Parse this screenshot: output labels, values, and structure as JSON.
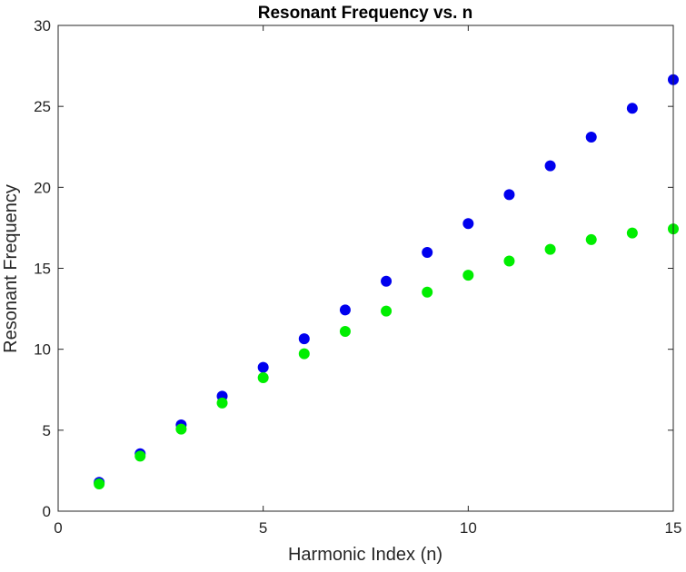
{
  "chart_data": {
    "type": "scatter",
    "title": "Resonant Frequency vs. n",
    "xlabel": "Harmonic Index (n)",
    "ylabel": "Resonant Frequency",
    "xlim": [
      0,
      15
    ],
    "ylim": [
      0,
      30
    ],
    "xticks": [
      0,
      5,
      10,
      15
    ],
    "yticks": [
      0,
      5,
      10,
      15,
      20,
      25,
      30
    ],
    "grid": false,
    "series": [
      {
        "color": "#0000ee",
        "x": [
          1,
          2,
          3,
          4,
          5,
          6,
          7,
          8,
          9,
          10,
          11,
          12,
          13,
          14,
          15
        ],
        "y": [
          1.78,
          3.55,
          5.33,
          7.1,
          8.88,
          10.65,
          12.43,
          14.2,
          15.98,
          17.76,
          19.55,
          21.33,
          23.1,
          24.88,
          26.65
        ]
      },
      {
        "color": "#00ee00",
        "x": [
          1,
          2,
          3,
          4,
          5,
          6,
          7,
          8,
          9,
          10,
          11,
          12,
          13,
          14,
          15
        ],
        "y": [
          1.68,
          3.4,
          5.07,
          6.68,
          8.24,
          9.72,
          11.1,
          12.36,
          13.53,
          14.57,
          15.45,
          16.17,
          16.77,
          17.18,
          17.43
        ]
      }
    ]
  }
}
